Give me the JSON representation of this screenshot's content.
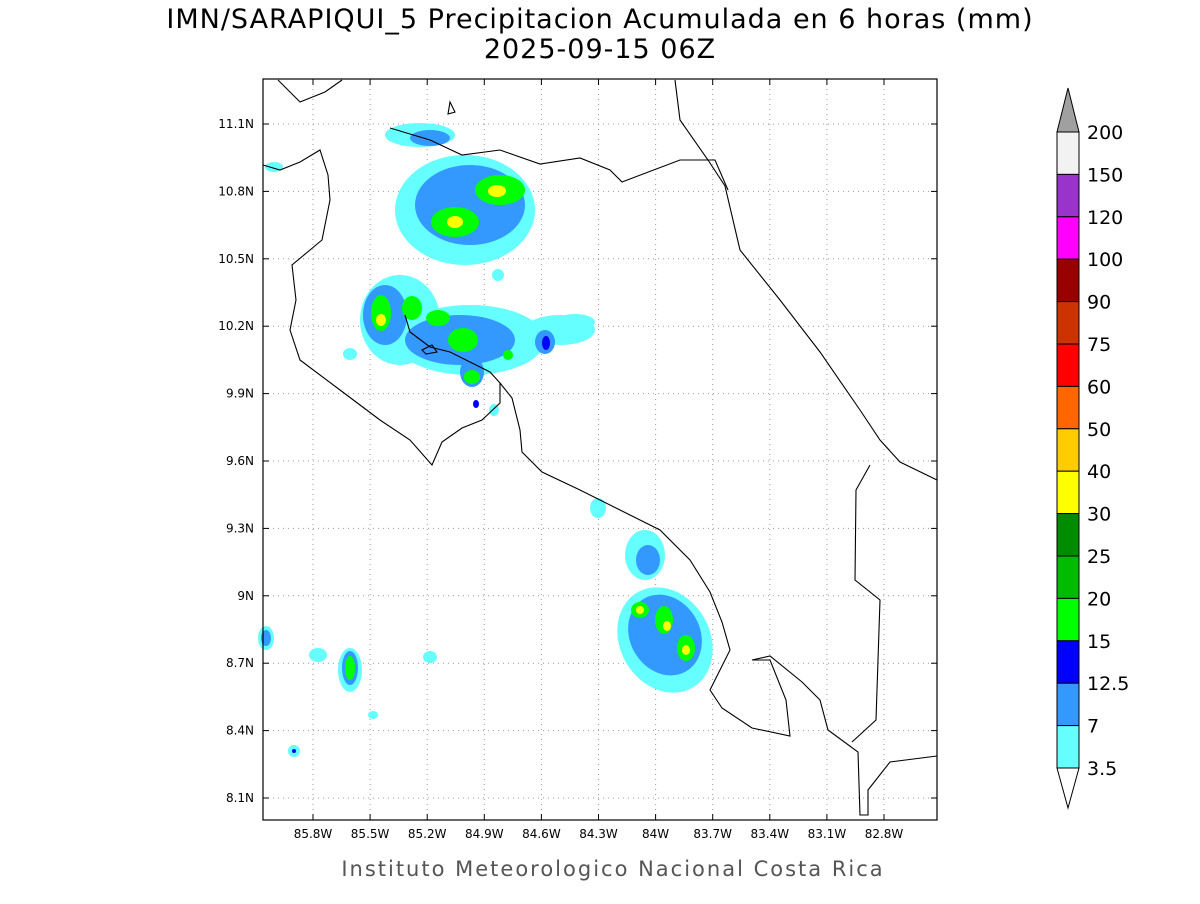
{
  "title": "IMN/SARAPIQUI_5 Precipitacion Acumulada en 6 horas (mm)",
  "subtitle": "2025-09-15 06Z",
  "footer": "Instituto Meteorologico Nacional Costa Rica",
  "lon_ticks": [
    "85.8W",
    "85.5W",
    "85.2W",
    "84.9W",
    "84.6W",
    "84.3W",
    "84W",
    "83.7W",
    "83.4W",
    "83.1W",
    "82.8W"
  ],
  "lat_ticks": [
    "11.1N",
    "10.8N",
    "10.5N",
    "10.2N",
    "9.9N",
    "9.6N",
    "9.3N",
    "9N",
    "8.7N",
    "8.4N",
    "8.1N"
  ],
  "colorbar": {
    "levels": [
      200,
      150,
      120,
      100,
      90,
      75,
      60,
      50,
      40,
      30,
      25,
      20,
      15,
      12.5,
      7,
      3.5
    ],
    "colors": [
      "#f2f2f2",
      "#9933cc",
      "#ff00ff",
      "#990000",
      "#cc3300",
      "#ff0000",
      "#ff6600",
      "#ffcc00",
      "#ffff00",
      "#008c00",
      "#00bb00",
      "#00ff00",
      "#0000ff",
      "#3399ff",
      "#66ffff"
    ],
    "over_color": "#a0a0a0",
    "under_color": "#ffffff"
  }
}
